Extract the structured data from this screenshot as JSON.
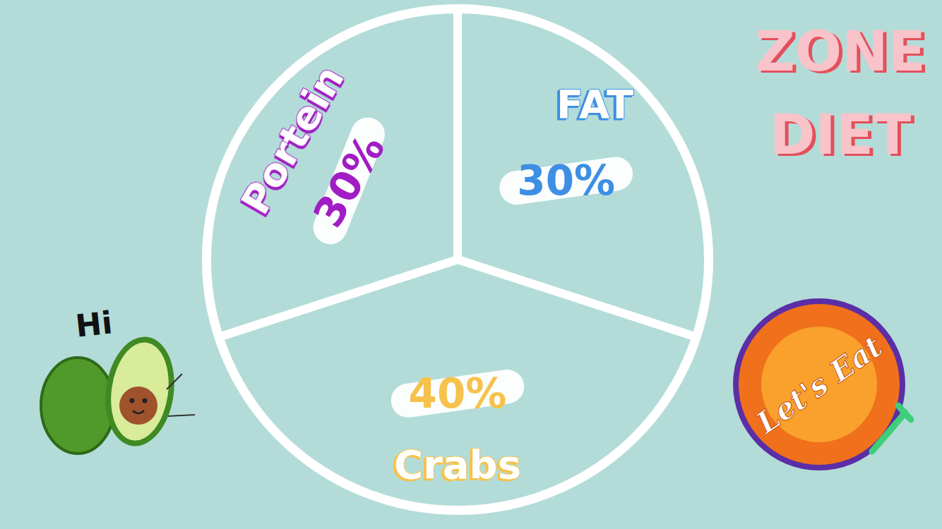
{
  "chart_data": {
    "type": "pie",
    "title": "ZONE DIET",
    "categories": [
      "FAT",
      "Crabs",
      "Portein"
    ],
    "values": [
      30,
      40,
      30
    ],
    "value_labels": [
      "30%",
      "40%",
      "30%"
    ],
    "colors": [
      "#3d8fe3",
      "#f6c24c",
      "#a21cc4"
    ],
    "data_labels": true,
    "annotations": [
      "Hi",
      "Let's Eat"
    ]
  }
}
